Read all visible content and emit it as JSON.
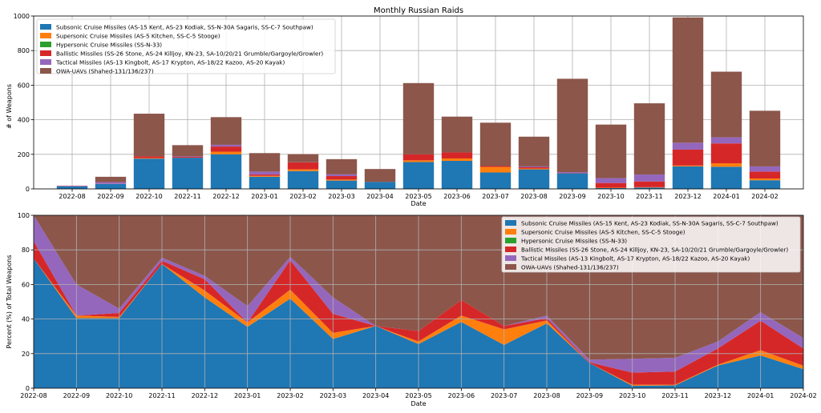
{
  "series_colors": [
    "#1f77b4",
    "#ff7f0e",
    "#2ca02c",
    "#d62728",
    "#9467bd",
    "#8c564b"
  ],
  "chart_data": [
    {
      "type": "bar",
      "stacked": true,
      "title": "Monthly Russian Raids",
      "xlabel": "Date",
      "ylabel": "# of Weapons",
      "ylim": [
        0,
        1000
      ],
      "yticks": [
        0,
        200,
        400,
        600,
        800,
        1000
      ],
      "grid": true,
      "legend": "top-left",
      "categories": [
        "2022-08",
        "2022-09",
        "2022-10",
        "2022-11",
        "2022-12",
        "2023-01",
        "2023-02",
        "2023-03",
        "2023-04",
        "2023-05",
        "2023-06",
        "2023-07",
        "2023-08",
        "2023-09",
        "2023-10",
        "2023-11",
        "2023-12",
        "2024-01",
        "2024-02"
      ],
      "series": [
        {
          "name": "Subsonic Cruise Missiles (AS-15 Kent, AS-23 Kodiak, SS-N-30A Sagaris, SS-C-7 Southpaw)",
          "values": [
            15,
            28,
            175,
            180,
            200,
            70,
            103,
            48,
            40,
            155,
            162,
            95,
            113,
            90,
            5,
            8,
            130,
            128,
            50
          ]
        },
        {
          "name": "Supersonic Cruise Missiles (AS-5 Kitchen, SS-C-5 Stooge)",
          "values": [
            0,
            1,
            3,
            0,
            15,
            5,
            10,
            6,
            0,
            10,
            14,
            32,
            5,
            0,
            2,
            2,
            5,
            20,
            10
          ]
        },
        {
          "name": "Hypersonic Cruise Missiles (SS-N-33)",
          "values": [
            0,
            0,
            0,
            0,
            0,
            0,
            0,
            0,
            0,
            0,
            0,
            0,
            0,
            0,
            0,
            0,
            0,
            0,
            0
          ]
        },
        {
          "name": "Ballistic Missiles (SS-26 Stone, AS-24 Killjoy, KN-23, SA-10/20/21 Grumble/Gargoyle/Growler)",
          "values": [
            2,
            0,
            10,
            5,
            30,
            8,
            40,
            20,
            0,
            35,
            35,
            5,
            7,
            2,
            27,
            33,
            92,
            115,
            40
          ]
        },
        {
          "name": "Tactical Missiles (AS-13 Kingbolt, AS-17 Krypton, AS-18/22 Kazoo, AS-20 Kayak)",
          "values": [
            2,
            10,
            0,
            3,
            10,
            17,
            1,
            10,
            0,
            0,
            0,
            0,
            5,
            5,
            28,
            40,
            40,
            35,
            30
          ]
        },
        {
          "name": "OWA-UAVs (Shahed-131/136/237)",
          "values": [
            0,
            31,
            247,
            65,
            160,
            107,
            47,
            88,
            75,
            412,
            207,
            251,
            172,
            540,
            310,
            412,
            725,
            380,
            322
          ]
        }
      ]
    },
    {
      "type": "area",
      "stacked": true,
      "xlabel": "Date",
      "ylabel": "Percent (%) of Total Weapons",
      "ylim": [
        0,
        100
      ],
      "yticks": [
        0,
        20,
        40,
        60,
        80,
        100
      ],
      "grid": true,
      "legend": "top-right",
      "x": [
        "2022-08",
        "2022-09",
        "2022-10",
        "2022-11",
        "2022-12",
        "2023-01",
        "2023-02",
        "2023-03",
        "2023-04",
        "2023-05",
        "2023-06",
        "2023-07",
        "2023-08",
        "2023-09",
        "2023-10",
        "2023-11",
        "2023-12",
        "2024-01",
        "2024-02"
      ],
      "series": [
        {
          "name": "Subsonic Cruise Missiles (AS-15 Kent, AS-23 Kodiak, SS-N-30A Sagaris, SS-C-7 Southpaw)",
          "values": [
            75,
            40.5,
            40.5,
            71.9,
            52.5,
            35.5,
            51.8,
            28.5,
            36,
            25.5,
            38.3,
            25,
            37.5,
            14.5,
            1.4,
            1.6,
            13.1,
            18.9,
            11
          ]
        },
        {
          "name": "Supersonic Cruise Missiles (AS-5 Kitchen, SS-C-5 Stooge)",
          "values": [
            0,
            1.5,
            0.7,
            0,
            4.0,
            2.5,
            5.2,
            3.5,
            0,
            1.5,
            3.7,
            9,
            1.7,
            0,
            0.6,
            0.4,
            0.5,
            3.1,
            2
          ]
        },
        {
          "name": "Hypersonic Cruise Missiles (SS-N-33)",
          "values": [
            0,
            0,
            0,
            0,
            0,
            0,
            0,
            0,
            0,
            0,
            0,
            0,
            0,
            0,
            0,
            0,
            0,
            0,
            0
          ]
        },
        {
          "name": "Ballistic Missiles (SS-26 Stone, AS-24 Killjoy, KN-23, SA-10/20/21 Grumble/Gargoyle/Growler)",
          "values": [
            10,
            0,
            2.3,
            1.8,
            6.5,
            0,
            17,
            11,
            0,
            6,
            9,
            2,
            1.3,
            0.5,
            7,
            7.6,
            9.4,
            17,
            10
          ]
        },
        {
          "name": "Tactical Missiles (AS-13 Kingbolt, AS-17 Krypton, AS-18/22 Kazoo, AS-20 Kayak)",
          "values": [
            15,
            18,
            2.5,
            1.8,
            2.0,
            9.5,
            2,
            9.5,
            0,
            0,
            0,
            0,
            1.5,
            1.5,
            8,
            8,
            4,
            5,
            6
          ]
        },
        {
          "name": "OWA-UAVs (Shahed-131/136/237)",
          "values": [
            0,
            40,
            54,
            24.5,
            35,
            52.5,
            24,
            47.5,
            64,
            67,
            49,
            64,
            58,
            83.5,
            83,
            82.4,
            73,
            56,
            71
          ]
        }
      ]
    }
  ]
}
